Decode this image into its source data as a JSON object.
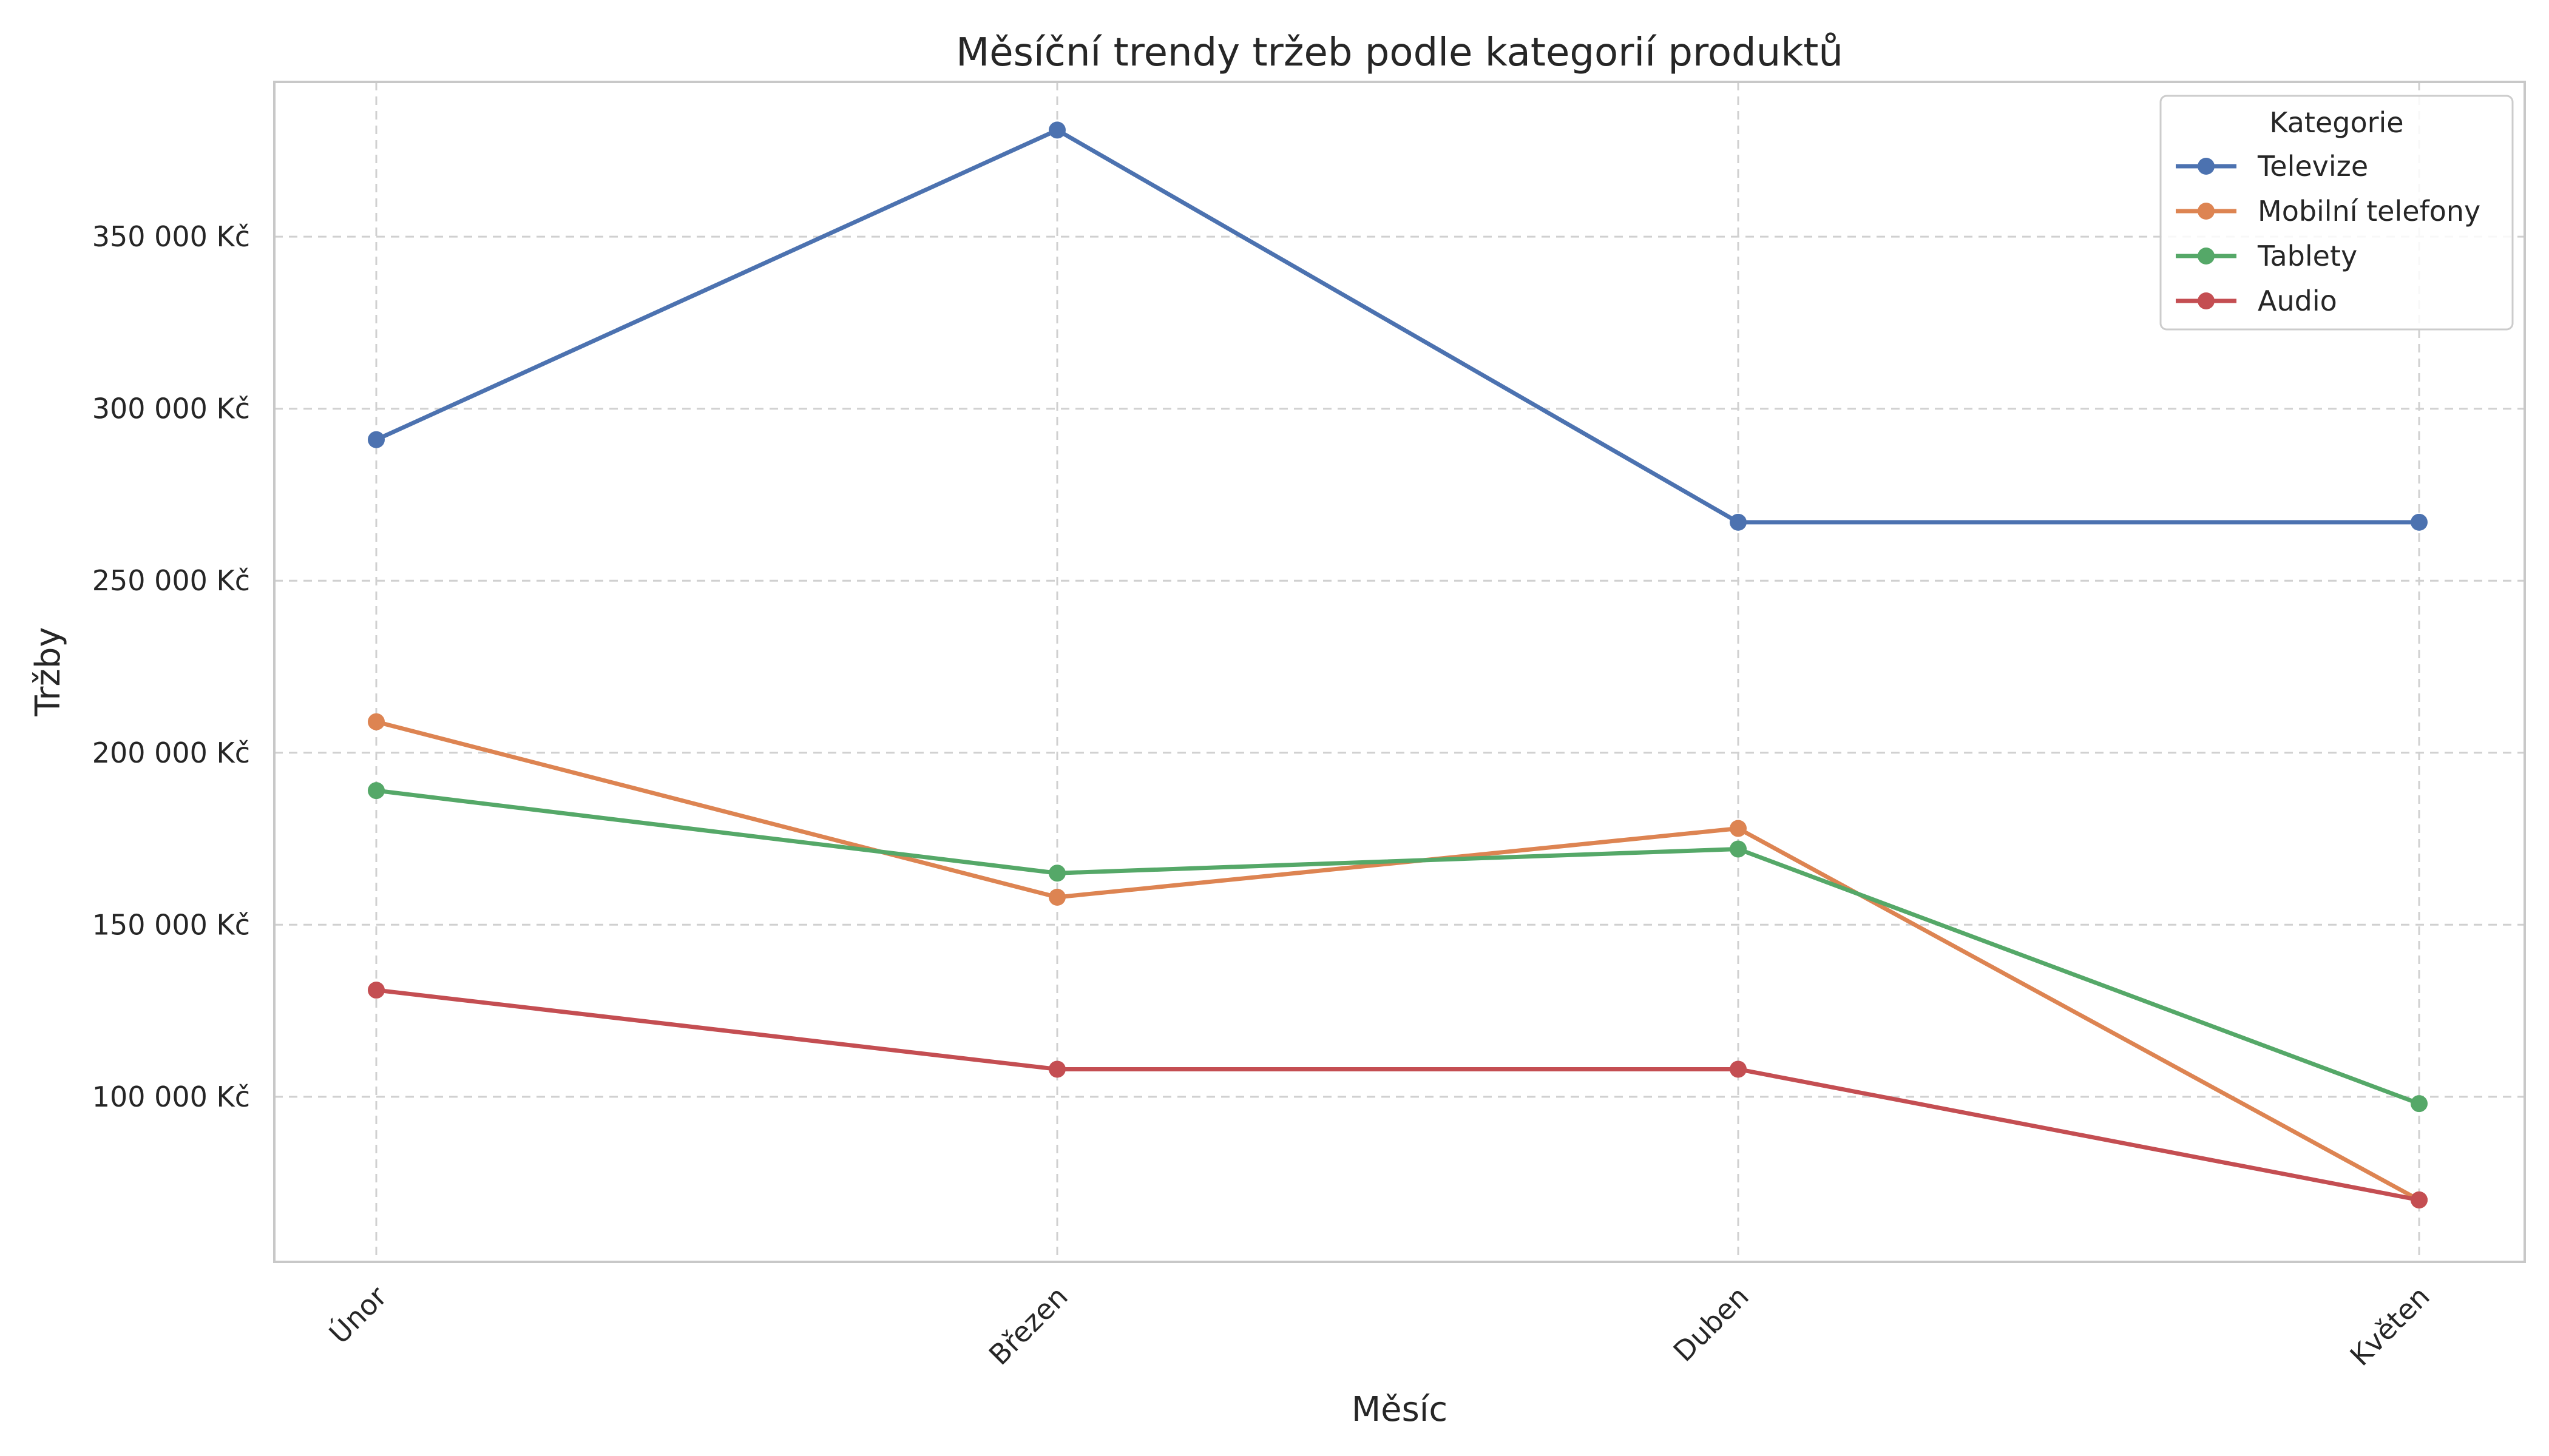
{
  "chart_data": {
    "type": "line",
    "title": "Měsíční trendy tržeb podle kategorií produktů",
    "xlabel": "Měsíc",
    "ylabel": "Tržby",
    "categories": [
      "Únor",
      "Březen",
      "Duben",
      "Květen"
    ],
    "ylim": [
      52000,
      395000
    ],
    "yticks": [
      100000,
      150000,
      200000,
      250000,
      300000,
      350000
    ],
    "ytick_labels": [
      "100 000 Kč",
      "150 000 Kč",
      "200 000 Kč",
      "250 000 Kč",
      "300 000 Kč",
      "350 000 Kč"
    ],
    "grid": true,
    "legend": {
      "title": "Kategorie",
      "position": "top-right"
    },
    "series": [
      {
        "name": "Televize",
        "color": "#4c72b0",
        "values": [
          291000,
          381000,
          267000,
          267000
        ]
      },
      {
        "name": "Mobilní telefony",
        "color": "#dd8452",
        "values": [
          209000,
          158000,
          178000,
          70000
        ]
      },
      {
        "name": "Tablety",
        "color": "#55a868",
        "values": [
          189000,
          165000,
          172000,
          98000
        ]
      },
      {
        "name": "Audio",
        "color": "#c44e52",
        "values": [
          131000,
          108000,
          108000,
          70000
        ]
      }
    ]
  }
}
